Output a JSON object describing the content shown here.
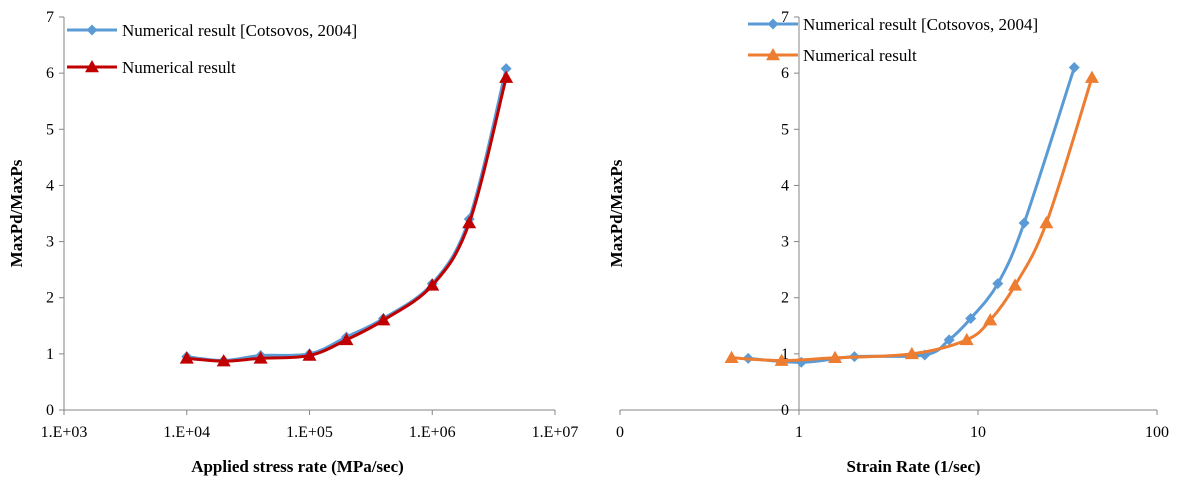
{
  "chart_data": [
    {
      "type": "line",
      "title": "",
      "xlabel": "Applied stress rate (MPa/sec)",
      "ylabel": "MaxPd/MaxPs",
      "x_scale": "log",
      "xlim": [
        1000,
        10000000
      ],
      "ylim": [
        0,
        7
      ],
      "x_ticks": [
        "1.E+03",
        "1.E+04",
        "1.E+05",
        "1.E+06",
        "1.E+07"
      ],
      "y_ticks": [
        "0",
        "1",
        "2",
        "3",
        "4",
        "5",
        "6",
        "7"
      ],
      "grid": false,
      "legend_position": "top",
      "series": [
        {
          "name": "Numerical result [Cotsovos, 2004]",
          "color": "#5B9BD5",
          "marker": "diamond",
          "x": [
            10000,
            20000,
            40000,
            100000,
            200000,
            400000,
            1000000,
            2000000,
            4000000
          ],
          "y": [
            0.95,
            0.88,
            0.97,
            1.0,
            1.3,
            1.63,
            2.25,
            3.4,
            6.08
          ]
        },
        {
          "name": "Numerical result",
          "color": "#C00000",
          "marker": "triangle",
          "x": [
            10000,
            20000,
            40000,
            100000,
            200000,
            400000,
            1000000,
            2000000,
            4000000
          ],
          "y": [
            0.92,
            0.87,
            0.92,
            0.97,
            1.25,
            1.6,
            2.22,
            3.33,
            5.92
          ]
        }
      ]
    },
    {
      "type": "line",
      "title": "",
      "xlabel": "Strain Rate (1/sec)",
      "ylabel": "MaxPd/MaxPs",
      "x_scale": "log",
      "xlim": [
        0.1,
        100
      ],
      "ylim": [
        0,
        7
      ],
      "x_ticks": [
        "0",
        "1",
        "10",
        "100"
      ],
      "y_ticks": [
        "0",
        "1",
        "2",
        "3",
        "4",
        "5",
        "6",
        "7"
      ],
      "grid": false,
      "legend_position": "top",
      "series": [
        {
          "name": "Numerical result [Cotsovos, 2004]",
          "color": "#5B9BD5",
          "marker": "diamond",
          "x": [
            0.52,
            1.03,
            2.04,
            5.04,
            6.9,
            9.1,
            12.9,
            18.1,
            34.5
          ],
          "y": [
            0.92,
            0.85,
            0.95,
            0.98,
            1.25,
            1.63,
            2.25,
            3.33,
            6.1
          ]
        },
        {
          "name": "Numerical result",
          "color": "#ED7D31",
          "marker": "triangle",
          "x": [
            0.42,
            0.8,
            1.59,
            4.27,
            8.65,
            11.7,
            16.1,
            24.1,
            43.3
          ],
          "y": [
            0.93,
            0.88,
            0.93,
            1.0,
            1.25,
            1.6,
            2.22,
            3.33,
            5.92
          ]
        }
      ]
    }
  ]
}
